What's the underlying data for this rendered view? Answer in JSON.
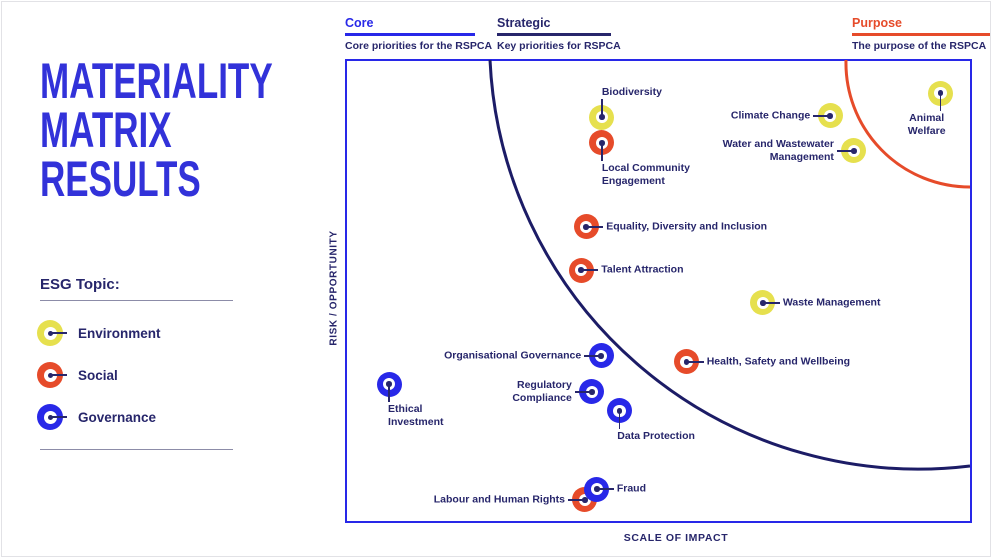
{
  "title": {
    "lines": [
      "MATERIALITY",
      "MATRIX",
      "RESULTS"
    ]
  },
  "legend": {
    "heading": "ESG Topic:",
    "items": [
      {
        "label": "Environment",
        "category": "Environment"
      },
      {
        "label": "Social",
        "category": "Social"
      },
      {
        "label": "Governance",
        "category": "Governance"
      }
    ]
  },
  "quadrant_headers": [
    {
      "id": "core",
      "title": "Core",
      "subtitle": "Core priorities for the RSPCA"
    },
    {
      "id": "strategic",
      "title": "Strategic",
      "subtitle": "Key priorities for RSPCA"
    },
    {
      "id": "purpose",
      "title": "Purpose",
      "subtitle": "The purpose of the RSPCA"
    }
  ],
  "axes": {
    "x": "SCALE OF IMPACT",
    "y": "RISK / OPPORTUNITY"
  },
  "colors": {
    "titleBlue": "#3232d9",
    "blue": "#2828e8",
    "navy": "#27266b",
    "arcNavy": "#1c1c66",
    "orange": "#e64b2a",
    "environment": "#e6e04e",
    "social": "#e64b2a",
    "governance": "#2828e8",
    "divider": "#8c8ca8",
    "frameGray": "#e2e2e6"
  },
  "chart_data": {
    "type": "scatter",
    "title": "Materiality Matrix Results",
    "xlabel": "SCALE OF IMPACT",
    "ylabel": "RISK / OPPORTUNITY",
    "xlim": [
      0,
      1
    ],
    "ylim": [
      0,
      1
    ],
    "grid": false,
    "legend_title": "ESG Topic",
    "categories": [
      "Environment",
      "Social",
      "Governance"
    ],
    "boundaries": [
      {
        "name": "strategic-zone-arc",
        "color_key": "arcNavy",
        "note": "large arc separating Core area (lower left) from Strategic area"
      },
      {
        "name": "purpose-zone-arc",
        "color_key": "orange",
        "note": "small arc isolating Purpose area in top-right corner"
      }
    ],
    "points": [
      {
        "label": "Biodiversity",
        "lines": [
          "Biodiversity"
        ],
        "category": "Environment",
        "impact": 0.41,
        "risk": 0.876,
        "side": "up",
        "dx": 0
      },
      {
        "label": "Local Community Engagement",
        "lines": [
          "Local Community",
          "Engagement"
        ],
        "category": "Social",
        "impact": 0.41,
        "risk": 0.82,
        "side": "down",
        "dx": 0
      },
      {
        "label": "Climate Change",
        "lines": [
          "Climate Change"
        ],
        "category": "Environment",
        "impact": 0.776,
        "risk": 0.879,
        "side": "left"
      },
      {
        "label": "Water and Wastewater Management",
        "lines": [
          "Water and Wastewater",
          "Management"
        ],
        "category": "Environment",
        "impact": 0.814,
        "risk": 0.803,
        "side": "left"
      },
      {
        "label": "Animal Welfare",
        "lines": [
          "Animal",
          "Welfare"
        ],
        "category": "Environment",
        "impact": 0.953,
        "risk": 0.928,
        "side": "down",
        "align": "center",
        "dx": -14
      },
      {
        "label": "Equality, Diversity and Inclusion",
        "lines": [
          "Equality, Diversity and Inclusion"
        ],
        "category": "Social",
        "impact": 0.385,
        "risk": 0.638,
        "side": "right"
      },
      {
        "label": "Talent Attraction",
        "lines": [
          "Talent Attraction"
        ],
        "category": "Social",
        "impact": 0.377,
        "risk": 0.544,
        "side": "right"
      },
      {
        "label": "Waste Management",
        "lines": [
          "Waste Management"
        ],
        "category": "Environment",
        "impact": 0.668,
        "risk": 0.473,
        "side": "right"
      },
      {
        "label": "Organisational Governance",
        "lines": [
          "Organisational Governance"
        ],
        "category": "Governance",
        "impact": 0.409,
        "risk": 0.358,
        "side": "left"
      },
      {
        "label": "Health, Safety and Wellbeing",
        "lines": [
          "Health, Safety and Wellbeing"
        ],
        "category": "Social",
        "impact": 0.546,
        "risk": 0.345,
        "side": "right"
      },
      {
        "label": "Ethical Investment",
        "lines": [
          "Ethical",
          "Investment"
        ],
        "category": "Governance",
        "impact": 0.069,
        "risk": 0.297,
        "side": "down",
        "dx": -1
      },
      {
        "label": "Regulatory Compliance",
        "lines": [
          "Regulatory",
          "Compliance"
        ],
        "category": "Governance",
        "impact": 0.394,
        "risk": 0.28,
        "side": "left"
      },
      {
        "label": "Data Protection",
        "lines": [
          "Data Protection"
        ],
        "category": "Governance",
        "impact": 0.438,
        "risk": 0.239,
        "side": "down",
        "dx": -2
      },
      {
        "label": "Labour and Human Rights",
        "lines": [
          "Labour and Human Rights"
        ],
        "category": "Social",
        "impact": 0.383,
        "risk": 0.046,
        "side": "left"
      },
      {
        "label": "Fraud",
        "lines": [
          "Fraud"
        ],
        "category": "Governance",
        "impact": 0.402,
        "risk": 0.069,
        "side": "right"
      }
    ]
  }
}
